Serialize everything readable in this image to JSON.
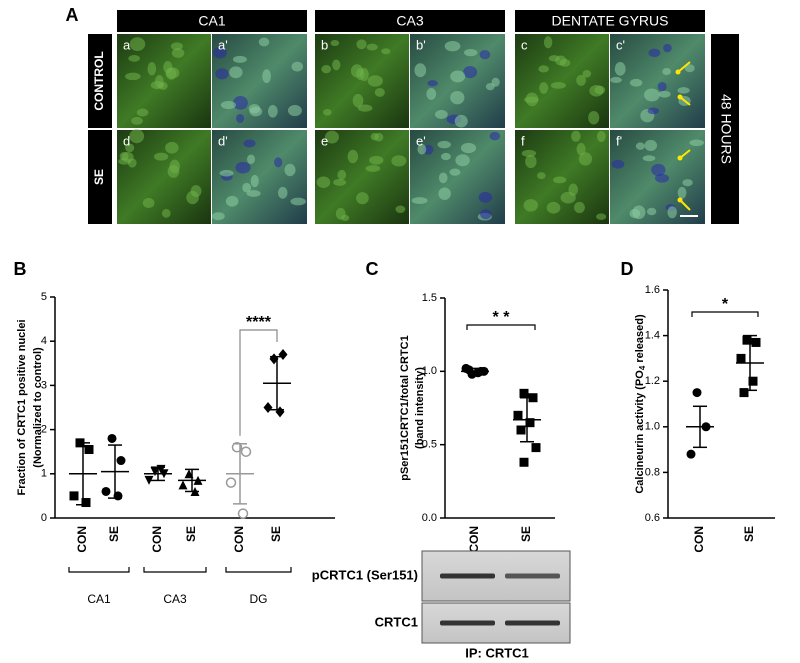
{
  "panel_a": {
    "panel": "A",
    "columns": [
      "CA1",
      "CA3",
      "DENTATE GYRUS"
    ],
    "rows": [
      "CONTROL",
      "SE"
    ],
    "side": "48 HOURS",
    "tiles": [
      [
        "a",
        "a'",
        "b",
        "b'",
        "c",
        "c'"
      ],
      [
        "d",
        "d'",
        "e",
        "e'",
        "f",
        "f'"
      ]
    ]
  },
  "chart_data": [
    {
      "type": "dot",
      "panel": "B",
      "y_label": [
        "Fraction of CRTC1 positive nuclei",
        "(Normalized to control)"
      ],
      "categories": [
        "CON",
        "SE",
        "CON",
        "SE",
        "CON",
        "SE"
      ],
      "groups": [
        "CA1",
        "CA3",
        "DG"
      ],
      "points": [
        [
          1.7,
          1.55,
          0.5,
          0.35
        ],
        [
          1.8,
          1.3,
          0.6,
          0.5
        ],
        [
          1.05,
          1.0,
          0.85,
          1.1
        ],
        [
          1.0,
          0.85,
          0.75,
          0.6
        ],
        [
          1.6,
          1.5,
          0.8,
          0.1
        ],
        [
          3.6,
          3.7,
          2.5,
          2.4
        ]
      ],
      "means": [
        1.0,
        1.05,
        1.0,
        0.85,
        1.0,
        3.05
      ],
      "sd": [
        0.7,
        0.6,
        0.15,
        0.25,
        0.68,
        0.6
      ],
      "markers": [
        "square",
        "circle",
        "triangle-down",
        "triangle-up",
        "circle-open",
        "diamond"
      ],
      "color": "#000000",
      "ylim": [
        0,
        5
      ],
      "yticks": [
        0,
        1,
        2,
        3,
        4,
        5
      ],
      "grid": false,
      "annotations": [
        {
          "text": "****",
          "between": [
            4,
            5
          ]
        }
      ]
    },
    {
      "type": "dot",
      "panel": "C",
      "y_label": [
        "pSer151CRTC1/total CRTC1",
        "(band intensity)"
      ],
      "categories": [
        "CON",
        "SE"
      ],
      "points": [
        [
          0.98,
          1.0,
          1.02,
          0.99,
          1.01,
          1.0
        ],
        [
          0.85,
          0.82,
          0.7,
          0.65,
          0.6,
          0.48,
          0.38
        ]
      ],
      "means": [
        1.0,
        0.67
      ],
      "sd": [
        0.02,
        0.15
      ],
      "markers": [
        "circle",
        "square"
      ],
      "color": "#000000",
      "ylim": [
        0,
        1.5
      ],
      "yticks": [
        {
          "value": 0,
          "label": "0.0"
        },
        {
          "value": 0.5,
          "label": "0.5"
        },
        {
          "value": 1,
          "label": "1.0"
        },
        {
          "value": 1.5,
          "label": "1.5"
        }
      ],
      "grid": false,
      "annotations": [
        {
          "text": "* *",
          "between": [
            0,
            1
          ]
        }
      ],
      "blot": {
        "rows": [
          "pCRTC1 (Ser151)",
          "CRTC1"
        ],
        "caption": "IP: CRTC1"
      }
    },
    {
      "type": "dot",
      "panel": "D",
      "y_label_parts": {
        "before": "Calcineurin activity (PO",
        "sub": "4",
        "after": " released)"
      },
      "categories": [
        "CON",
        "SE"
      ],
      "points": [
        [
          1.15,
          1.0,
          0.88
        ],
        [
          1.38,
          1.37,
          1.3,
          1.2,
          1.15
        ]
      ],
      "means": [
        1.0,
        1.28
      ],
      "sd": [
        0.09,
        0.12
      ],
      "markers": [
        "circle",
        "square"
      ],
      "color": "#000000",
      "ylim": [
        0.6,
        1.6
      ],
      "yticks": [
        {
          "value": 0.6,
          "label": "0.6"
        },
        {
          "value": 0.8,
          "label": "0.8"
        },
        {
          "value": 1,
          "label": "1.0"
        },
        {
          "value": 1.2,
          "label": "1.2"
        },
        {
          "value": 1.4,
          "label": "1.4"
        },
        {
          "value": 1.6,
          "label": "1.6"
        }
      ],
      "grid": false,
      "annotations": [
        {
          "text": "*",
          "between": [
            0,
            1
          ]
        }
      ]
    }
  ]
}
